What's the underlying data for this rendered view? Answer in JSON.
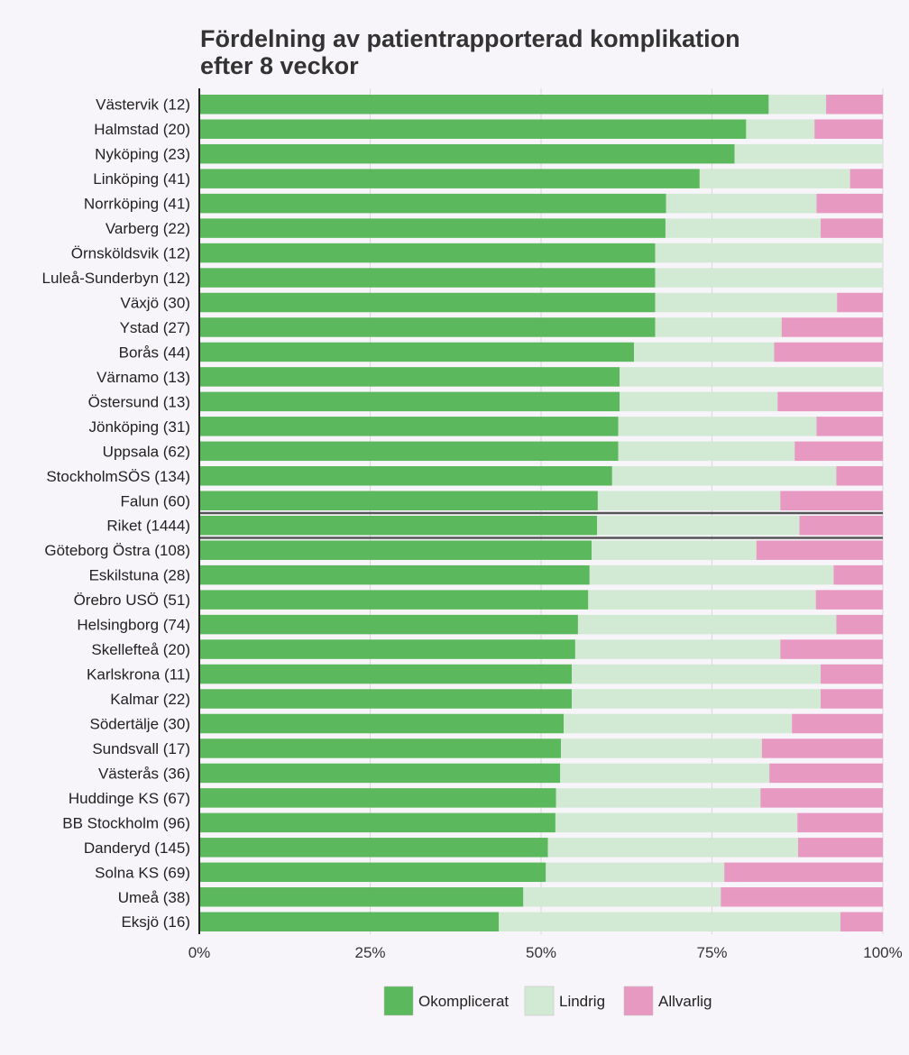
{
  "chart_data": {
    "type": "bar",
    "orientation": "horizontal",
    "stacked": true,
    "title_lines": [
      "Fördelning av patientrapporterad komplikation",
      "efter 8 veckor"
    ],
    "xlabel": "",
    "ylabel": "",
    "xlim": [
      0,
      100
    ],
    "x_ticks": [
      0,
      25,
      50,
      75,
      100
    ],
    "x_tick_labels": [
      "0%",
      "25%",
      "50%",
      "75%",
      "100%"
    ],
    "grid": true,
    "legend_position": "bottom",
    "highlight_category": "Riket (1444)",
    "categories": [
      "Västervik (12)",
      "Halmstad (20)",
      "Nyköping (23)",
      "Linköping (41)",
      "Norrköping (41)",
      "Varberg (22)",
      "Örnsköldsvik (12)",
      "Luleå-Sunderbyn (12)",
      "Växjö (30)",
      "Ystad (27)",
      "Borås (44)",
      "Värnamo (13)",
      "Östersund (13)",
      "Jönköping (31)",
      "Uppsala (62)",
      "StockholmSÖS (134)",
      "Falun (60)",
      "Riket (1444)",
      "Göteborg Östra (108)",
      "Eskilstuna (28)",
      "Örebro USÖ (51)",
      "Helsingborg (74)",
      "Skellefteå (20)",
      "Karlskrona (11)",
      "Kalmar (22)",
      "Södertälje (30)",
      "Sundsvall (17)",
      "Västerås (36)",
      "Huddinge KS (67)",
      "BB Stockholm (96)",
      "Danderyd (145)",
      "Solna KS (69)",
      "Umeå (38)",
      "Eksjö (16)"
    ],
    "series": [
      {
        "name": "Okomplicerat",
        "color": "#5cb85c",
        "values": [
          83.3,
          80.0,
          78.3,
          73.2,
          68.3,
          68.2,
          66.7,
          66.7,
          66.7,
          66.7,
          63.6,
          61.5,
          61.5,
          61.3,
          61.3,
          60.4,
          58.3,
          58.2,
          57.4,
          57.1,
          56.9,
          55.4,
          55.0,
          54.5,
          54.5,
          53.3,
          52.9,
          52.8,
          52.2,
          52.1,
          51.0,
          50.7,
          47.4,
          43.8
        ]
      },
      {
        "name": "Lindrig",
        "color": "#d2ead4",
        "values": [
          8.4,
          10.0,
          21.7,
          22.0,
          22.0,
          22.7,
          33.3,
          33.3,
          26.6,
          18.5,
          20.5,
          38.5,
          23.1,
          29.0,
          25.8,
          32.8,
          26.7,
          29.6,
          24.1,
          35.7,
          33.3,
          37.8,
          30.0,
          36.4,
          36.4,
          33.4,
          29.4,
          30.6,
          29.9,
          35.4,
          36.6,
          26.1,
          28.9,
          50.0
        ]
      },
      {
        "name": "Allvarlig",
        "color": "#e899c2",
        "values": [
          8.3,
          10.0,
          0.0,
          4.8,
          9.7,
          9.1,
          0.0,
          0.0,
          6.7,
          14.8,
          15.9,
          0.0,
          15.4,
          9.7,
          12.9,
          6.8,
          15.0,
          12.2,
          18.5,
          7.2,
          9.8,
          6.8,
          15.0,
          9.1,
          9.1,
          13.3,
          17.7,
          16.6,
          17.9,
          12.5,
          12.4,
          23.2,
          23.7,
          6.2
        ]
      }
    ]
  }
}
